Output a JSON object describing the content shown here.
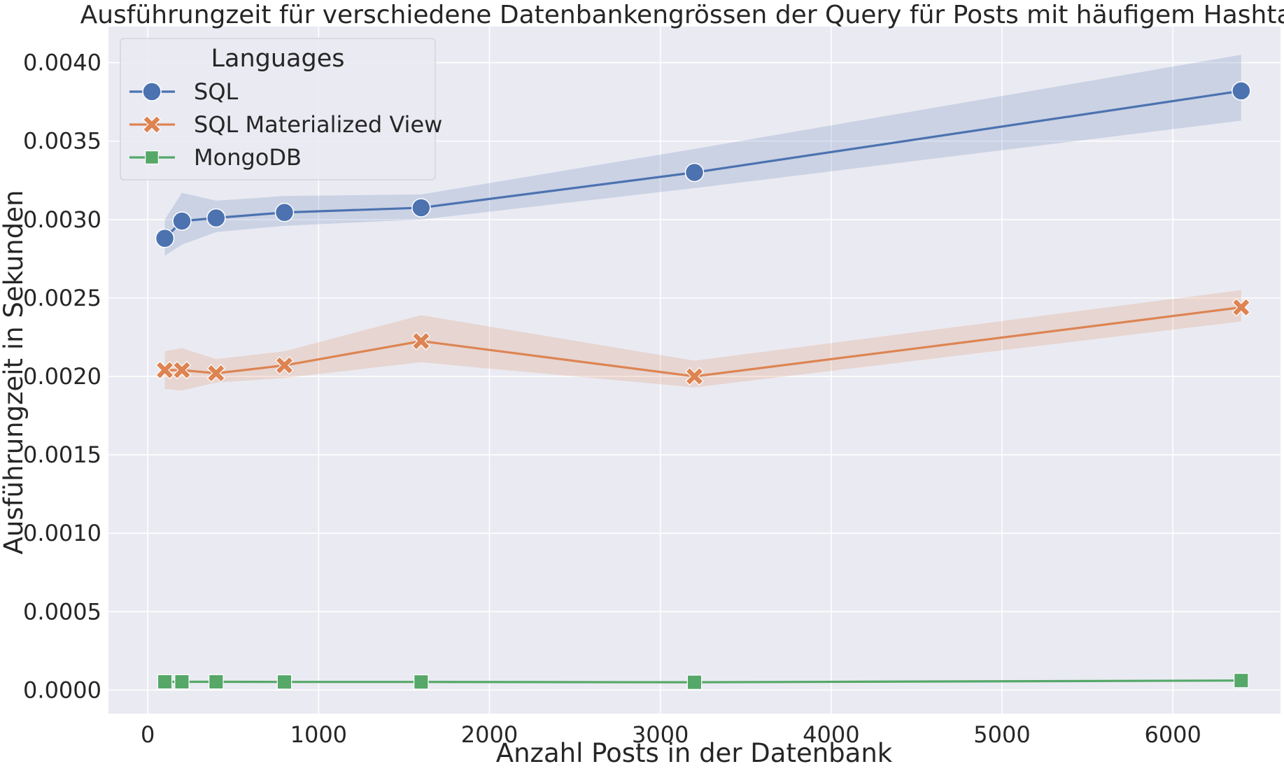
{
  "chart_data": {
    "type": "line",
    "title": "Ausführungzeit für verschiedene Datenbankengrössen der Query für Posts mit häufigem Hashtag",
    "xlabel": "Anzahl Posts in der Datenbank",
    "ylabel": "Ausführungzeit in Sekunden",
    "xlim": [
      -230,
      6630
    ],
    "ylim": [
      -0.00015,
      0.00423
    ],
    "xticks": [
      0,
      1000,
      2000,
      3000,
      4000,
      5000,
      6000
    ],
    "xtick_labels": [
      "0",
      "1000",
      "2000",
      "3000",
      "4000",
      "5000",
      "6000"
    ],
    "yticks": [
      0.0,
      0.0005,
      0.001,
      0.0015,
      0.002,
      0.0025,
      0.003,
      0.0035,
      0.004
    ],
    "ytick_labels": [
      "0.0000",
      "0.0005",
      "0.0010",
      "0.0015",
      "0.0020",
      "0.0025",
      "0.0030",
      "0.0035",
      "0.0040"
    ],
    "grid": true,
    "background": "#EAEAF2",
    "legend": {
      "title": "Languages",
      "placement": "top-left"
    },
    "x": [
      100,
      200,
      400,
      800,
      1600,
      3200,
      6400
    ],
    "series": [
      {
        "name": "SQL",
        "marker": "circle",
        "color": "#4C72B0",
        "values": [
          0.00288,
          0.00299,
          0.00301,
          0.003045,
          0.003075,
          0.0033,
          0.00382
        ],
        "ci_lower": [
          0.00277,
          0.00284,
          0.00292,
          0.00296,
          0.003,
          0.0032,
          0.00363
        ],
        "ci_upper": [
          0.003,
          0.00317,
          0.00312,
          0.00315,
          0.00316,
          0.00345,
          0.00405
        ]
      },
      {
        "name": "SQL Materialized View",
        "marker": "x",
        "color": "#DD8452",
        "values": [
          0.00204,
          0.00204,
          0.00202,
          0.00207,
          0.002225,
          0.002,
          0.00244
        ],
        "ci_lower": [
          0.00192,
          0.00191,
          0.00196,
          0.00199,
          0.00209,
          0.00193,
          0.00235
        ],
        "ci_upper": [
          0.00216,
          0.00218,
          0.00211,
          0.00216,
          0.00239,
          0.0021,
          0.00255
        ]
      },
      {
        "name": "MongoDB",
        "marker": "square",
        "color": "#55A868",
        "values": [
          5.3e-05,
          5.3e-05,
          5.3e-05,
          5.2e-05,
          5.2e-05,
          5e-05,
          6.1e-05
        ],
        "ci_lower": [
          4.9e-05,
          4.9e-05,
          4.9e-05,
          4.8e-05,
          4.8e-05,
          4.6e-05,
          5.6e-05
        ],
        "ci_upper": [
          5.7e-05,
          5.7e-05,
          5.7e-05,
          5.6e-05,
          5.6e-05,
          5.4e-05,
          6.6e-05
        ]
      }
    ]
  }
}
